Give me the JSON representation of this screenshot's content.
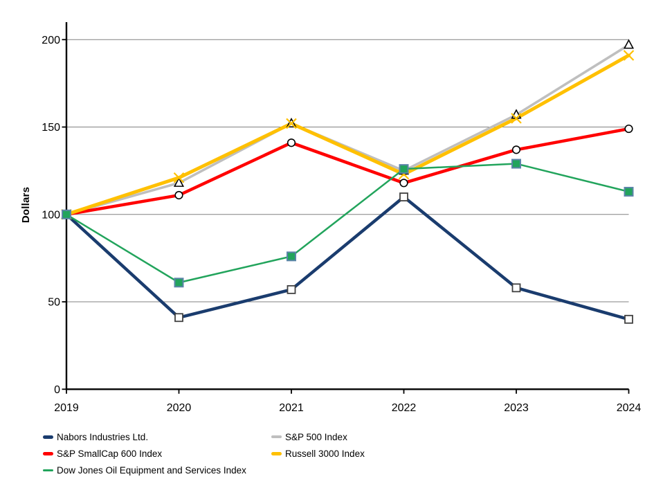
{
  "chart_data": {
    "type": "line",
    "title": "",
    "ylabel": "Dollars",
    "xlabel": "",
    "x_labels": [
      "2019",
      "2020",
      "2021",
      "2022",
      "2023",
      "2024"
    ],
    "y_ticks": [
      0,
      50,
      100,
      150,
      200
    ],
    "ylim": [
      0,
      210
    ],
    "grid": "horizontal gridlines at each y tick",
    "grid_color": "#808080",
    "axis_color": "#000000",
    "background_color": "#FFFFFF",
    "legend_position": "bottom, two columns",
    "series": [
      {
        "name": "Nabors Industries Ltd.",
        "color": "#1A3C6E",
        "marker": "open-square",
        "marker_stroke": "#404040",
        "marker_fill": "#FFFFFF",
        "line_width": 4.5,
        "legend_row": 0,
        "legend_col": 0,
        "values": [
          100,
          41,
          57,
          110,
          58,
          40
        ]
      },
      {
        "name": "S&P 500 Index",
        "color": "#BFBFBF",
        "marker": "open-triangle",
        "marker_stroke": "#000000",
        "marker_fill": "#FFFFFF",
        "line_width": 3.6,
        "legend_row": 0,
        "legend_col": 1,
        "values": [
          100,
          118,
          152,
          125,
          157,
          197
        ]
      },
      {
        "name": "S&P SmallCap 600 Index",
        "color": "#FF0000",
        "marker": "open-circle",
        "marker_stroke": "#000000",
        "marker_fill": "#FFFFFF",
        "line_width": 4.5,
        "legend_row": 1,
        "legend_col": 0,
        "values": [
          100,
          111,
          141,
          118,
          137,
          149
        ]
      },
      {
        "name": "Russell 3000 Index",
        "color": "#FFC000",
        "marker": "x-cross",
        "marker_stroke": "#FFC000",
        "marker_fill": "none",
        "line_width": 5,
        "legend_row": 1,
        "legend_col": 1,
        "values": [
          100,
          121,
          152,
          123,
          155,
          191
        ]
      },
      {
        "name": "Dow Jones Oil Equipment and Services Index",
        "color": "#22A45C",
        "marker": "filled-square",
        "marker_stroke": "#5B84A8",
        "marker_fill": "#22A45C",
        "line_width": 2.5,
        "legend_row": 2,
        "legend_col": 0,
        "values": [
          100,
          61,
          76,
          126,
          129,
          113
        ]
      }
    ]
  }
}
